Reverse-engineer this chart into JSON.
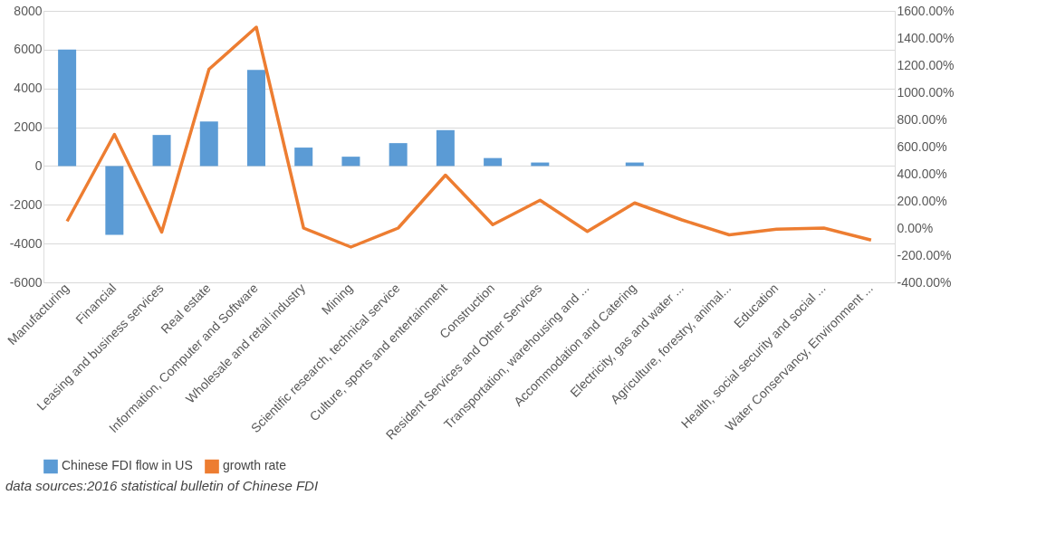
{
  "chart_data": {
    "type": "bar",
    "categories": [
      "Manufacturing",
      "Financial",
      "Leasing and business services",
      "Real estate",
      "Information, Computer and Software",
      "Wholesale and retail industry",
      "Mining",
      "Scientific research, technical service",
      "Culture, sports and entertainment",
      "Construction",
      "Resident Services and Other Services",
      "Transportation, warehousing and ...",
      "Accommodation and Catering",
      "Electricity, gas and water ...",
      "Agriculture, forestry, animal...",
      "Education",
      "Health, social security and social ...",
      "Water Conservancy, Environment ..."
    ],
    "series": [
      {
        "name": "Chinese FDI flow in US",
        "color": "#5b9bd5",
        "values": [
          6000,
          -3550,
          1600,
          2300,
          4950,
          950,
          480,
          1180,
          1850,
          410,
          180,
          0,
          180,
          0,
          0,
          0,
          0,
          0
        ]
      },
      {
        "name": "growth rate",
        "type": "line",
        "axis": "y2",
        "color": "#ed7d31",
        "values": [
          50,
          690,
          -30,
          1170,
          1480,
          0,
          -140,
          0,
          390,
          25,
          205,
          -25,
          185,
          60,
          -50,
          -8,
          0,
          -88
        ]
      }
    ],
    "ylim": [
      -6000,
      8000
    ],
    "yticks": [
      -6000,
      -4000,
      -2000,
      0,
      2000,
      4000,
      6000,
      8000
    ],
    "y2lim": [
      -400,
      1600
    ],
    "y2ticks": [
      {
        "value": -400,
        "label": "-400.00%"
      },
      {
        "value": -200,
        "label": "-200.00%"
      },
      {
        "value": 0,
        "label": "0.00%"
      },
      {
        "value": 200,
        "label": "200.00%"
      },
      {
        "value": 400,
        "label": "400.00%"
      },
      {
        "value": 600,
        "label": "600.00%"
      },
      {
        "value": 800,
        "label": "800.00%"
      },
      {
        "value": 1000,
        "label": "1000.00%"
      },
      {
        "value": 1200,
        "label": "1200.00%"
      },
      {
        "value": 1400,
        "label": "1400.00%"
      },
      {
        "value": 1600,
        "label": "1600.00%"
      }
    ],
    "grid": "y",
    "legend": "bottom",
    "marker": "none",
    "line_style": "solid",
    "annotations": [
      "data sources:2016 statistical  bulletin  of Chinese FDI"
    ]
  }
}
